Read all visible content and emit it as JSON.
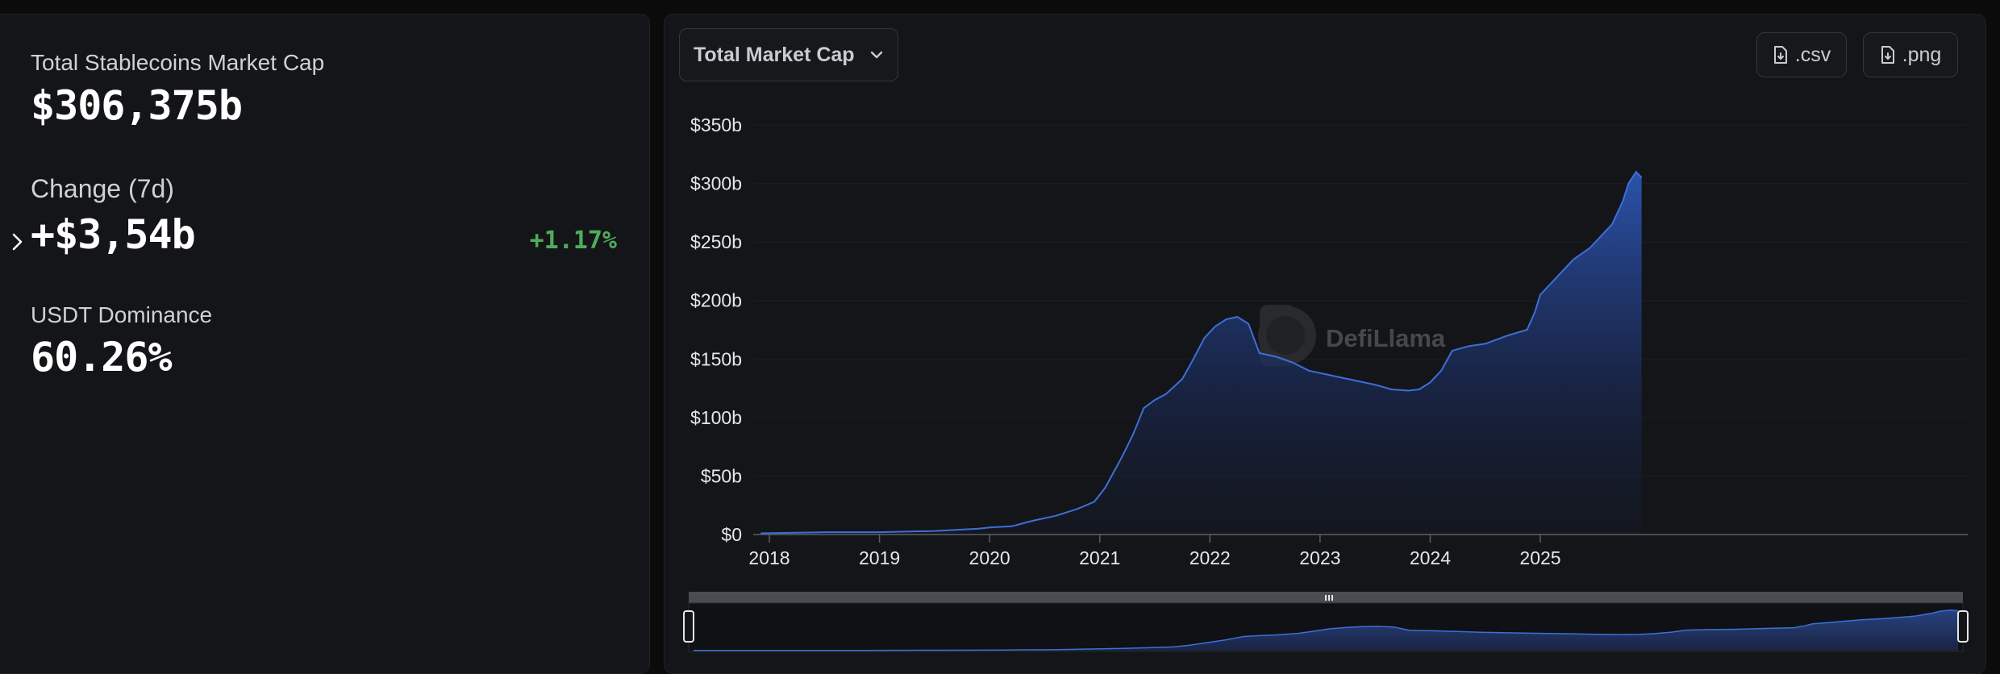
{
  "stats": {
    "market_cap_label": "Total Stablecoins Market Cap",
    "market_cap_value": "$306,375b",
    "change_label": "Change (7d)",
    "change_value": "+$3,54b",
    "change_pct": "+1.17%",
    "dominance_label": "USDT Dominance",
    "dominance_value": "60.26%"
  },
  "toolbar": {
    "metric_select_label": "Total Market Cap",
    "csv_label": ".csv",
    "png_label": ".png"
  },
  "watermark": {
    "text": "DefiLlama"
  },
  "colors": {
    "positive": "#4fac5a",
    "line": "#3d6fd8",
    "panel": "#141518",
    "background": "#0b0b0c"
  },
  "chart_data": {
    "type": "area",
    "x_ticks": [
      "2018",
      "2019",
      "2020",
      "2021",
      "2022",
      "2023",
      "2024",
      "2025"
    ],
    "y_ticks": [
      "$0",
      "$50b",
      "$100b",
      "$150b",
      "$200b",
      "$250b",
      "$300b",
      "$350b"
    ],
    "ylim": [
      0,
      350
    ],
    "xlim": [
      2017.9,
      2025.92
    ],
    "x": [
      2017.92,
      2018.5,
      2019.0,
      2019.5,
      2019.9,
      2020.0,
      2020.2,
      2020.4,
      2020.6,
      2020.8,
      2020.95,
      2021.05,
      2021.2,
      2021.3,
      2021.4,
      2021.5,
      2021.6,
      2021.75,
      2021.85,
      2021.95,
      2022.05,
      2022.15,
      2022.25,
      2022.35,
      2022.45,
      2022.6,
      2022.75,
      2022.9,
      2023.0,
      2023.25,
      2023.5,
      2023.65,
      2023.8,
      2023.9,
      2024.0,
      2024.1,
      2024.2,
      2024.35,
      2024.5,
      2024.7,
      2024.88,
      2024.95,
      2025.0,
      2025.1,
      2025.2,
      2025.3,
      2025.45,
      2025.55,
      2025.65,
      2025.75,
      2025.8,
      2025.87,
      2025.92
    ],
    "y": [
      1,
      2,
      2,
      3,
      5,
      6,
      7,
      12,
      16,
      22,
      28,
      40,
      66,
      85,
      108,
      115,
      120,
      133,
      150,
      168,
      178,
      184,
      186,
      180,
      155,
      152,
      147,
      140,
      138,
      133,
      128,
      124,
      123,
      124,
      130,
      140,
      157,
      161,
      163,
      170,
      175,
      190,
      205,
      215,
      225,
      235,
      245,
      255,
      265,
      285,
      300,
      310,
      305
    ]
  }
}
